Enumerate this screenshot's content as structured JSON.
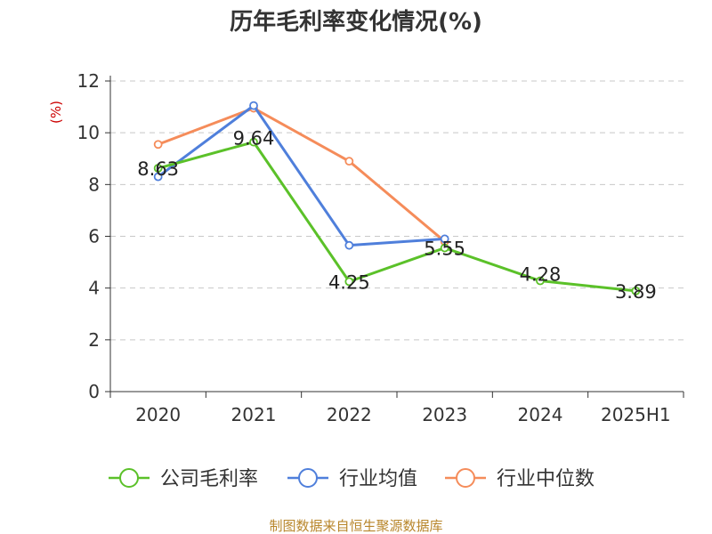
{
  "chart_data": {
    "type": "line",
    "title": "历年毛利率变化情况(%)",
    "unit_label": "(%)",
    "categories": [
      "2020",
      "2021",
      "2022",
      "2023",
      "2024",
      "2025H1"
    ],
    "ylim": [
      0,
      12
    ],
    "yticks": [
      "0",
      "2",
      "4",
      "6",
      "8",
      "10",
      "12"
    ],
    "grid": true,
    "legend_position": "bottom",
    "series": [
      {
        "name": "公司毛利率",
        "color": "#5bc129",
        "values": [
          8.63,
          9.64,
          4.25,
          5.55,
          4.28,
          3.89
        ],
        "labels": [
          "8.63",
          "9.64",
          "4.25",
          "5.55",
          "4.28",
          "3.89"
        ]
      },
      {
        "name": "行业均值",
        "color": "#4f7fdb",
        "values": [
          8.3,
          11.05,
          5.65,
          5.9,
          null,
          null
        ]
      },
      {
        "name": "行业中位数",
        "color": "#f58c5a",
        "values": [
          9.55,
          10.95,
          8.9,
          5.8,
          null,
          null
        ]
      }
    ]
  },
  "source": "制图数据来自恒生聚源数据库"
}
